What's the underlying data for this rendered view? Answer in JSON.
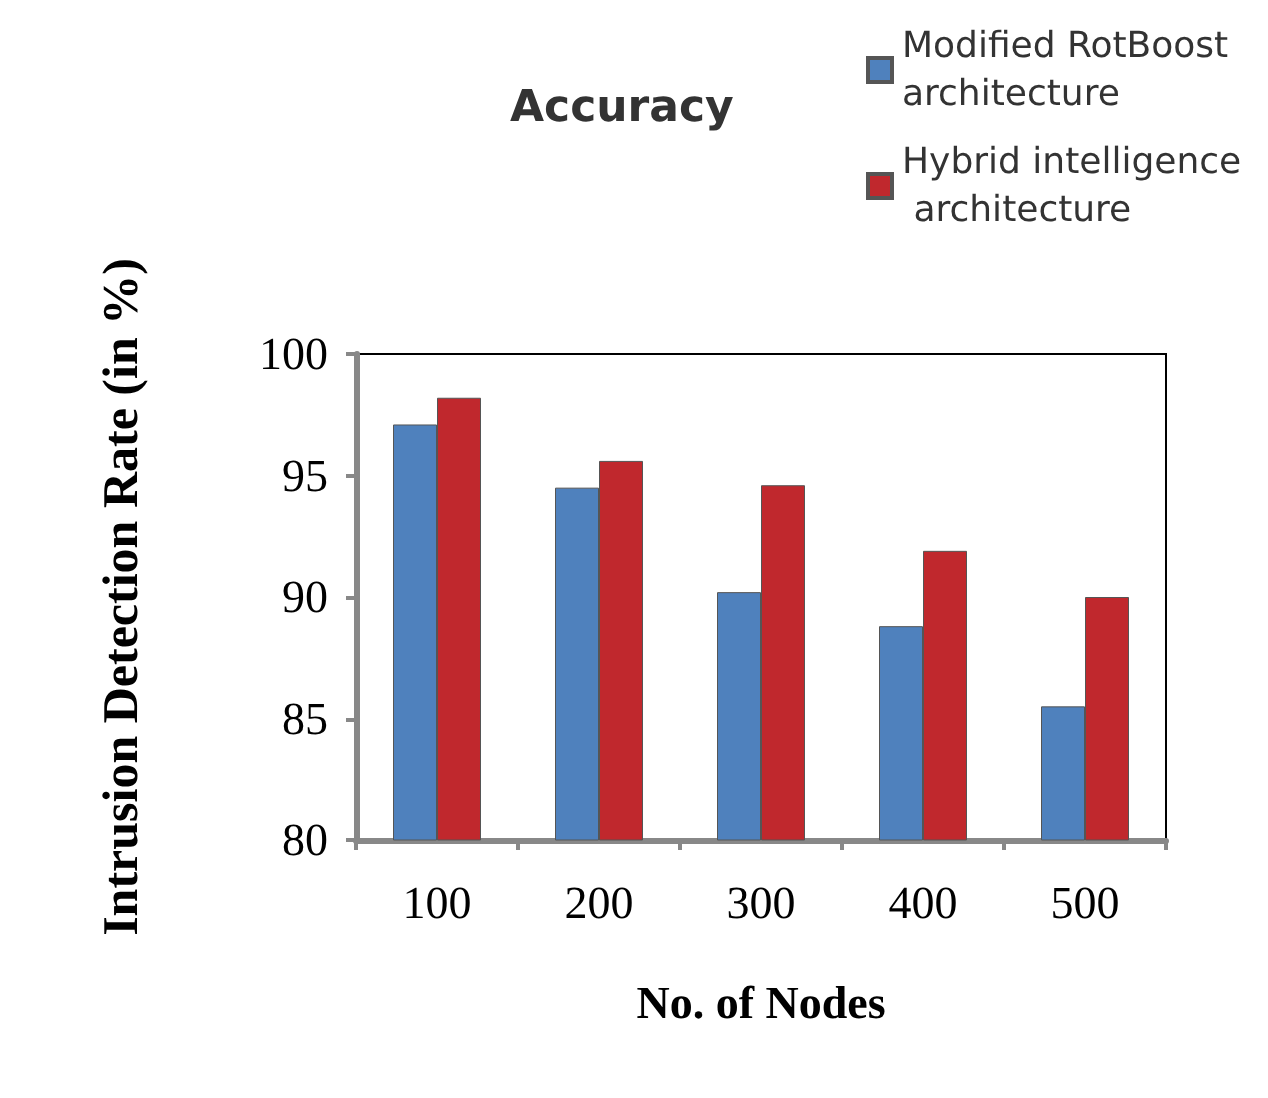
{
  "chart_data": {
    "type": "bar",
    "title": "Accuracy",
    "xlabel": "No. of Nodes",
    "ylabel": "Intrusion Detection Rate (in %)",
    "categories": [
      "100",
      "200",
      "300",
      "400",
      "500"
    ],
    "series": [
      {
        "name": "Modified RotBoost architecture",
        "color": "#4f81bd",
        "values": [
          97.1,
          94.5,
          90.2,
          88.8,
          85.5
        ]
      },
      {
        "name": "Hybrid intelligence architecture",
        "color": "#c0282d",
        "values": [
          98.2,
          95.6,
          94.6,
          91.9,
          90.0
        ]
      }
    ],
    "ylim": [
      80,
      100
    ],
    "yticks": [
      80,
      85,
      90,
      95,
      100
    ],
    "grid": false,
    "legend": "top right"
  }
}
